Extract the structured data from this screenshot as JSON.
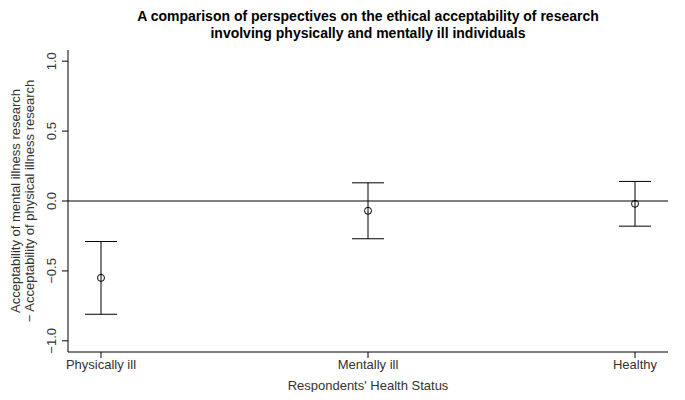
{
  "chart_data": {
    "type": "scatter",
    "title": "A comparison of perspectives on the ethical acceptability of research\ninvolving physically and mentally ill individuals",
    "x_label": "Respondents' Health Status",
    "y_label": "Acceptability of mental illness research\n− Acceptability of physical illness research",
    "categories": [
      "Physically ill",
      "Mentally ill",
      "Healthy"
    ],
    "values": [
      -0.55,
      -0.07,
      -0.02
    ],
    "ci_lower": [
      -0.81,
      -0.27,
      -0.18
    ],
    "ci_upper": [
      -0.29,
      0.13,
      0.14
    ],
    "hline": 0,
    "ylim": [
      -1.08,
      1.08
    ],
    "yticks": [
      {
        "value": -1,
        "label": "−1.0"
      },
      {
        "value": -0.5,
        "label": "−0.5"
      },
      {
        "value": 0,
        "label": "0.0"
      },
      {
        "value": 0.5,
        "label": "0.5"
      },
      {
        "value": 1,
        "label": "1.0"
      }
    ],
    "color": "#000000",
    "marker": "open_circle"
  }
}
